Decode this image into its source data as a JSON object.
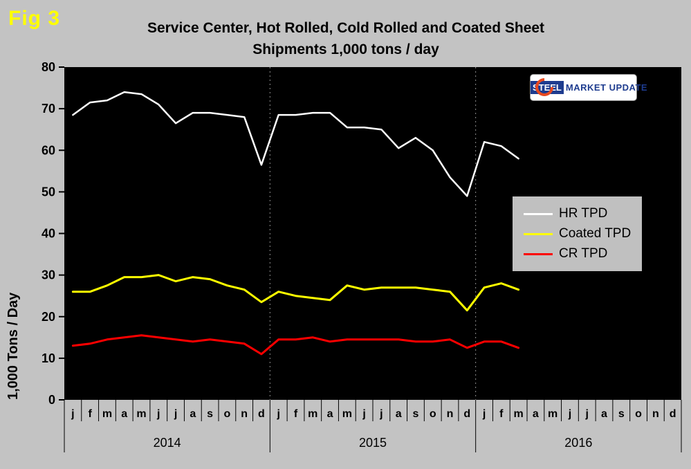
{
  "header": {
    "fig_label": "Fig 3",
    "title_line1": "Service Center, Hot Rolled, Cold Rolled and Coated Sheet",
    "title_line2": "Shipments 1,000 tons / day"
  },
  "logo": {
    "steel": "STEEL",
    "market_update": "MARKET UPDATE"
  },
  "legend": {
    "entries": [
      {
        "label": "HR TPD",
        "color": "#ffffff"
      },
      {
        "label": "Coated TPD",
        "color": "#ffff00"
      },
      {
        "label": "CR TPD",
        "color": "#ff0000"
      }
    ]
  },
  "chart_data": {
    "type": "line",
    "title": "Service Center, Hot Rolled, Cold Rolled and Coated Sheet Shipments 1,000 tons / day",
    "xlabel": "",
    "ylabel": "1,000 Tons / Day",
    "ylim": [
      0,
      80
    ],
    "y_ticks": [
      0,
      10,
      20,
      30,
      40,
      50,
      60,
      70,
      80
    ],
    "month_letters": [
      "j",
      "f",
      "m",
      "a",
      "m",
      "j",
      "j",
      "a",
      "s",
      "o",
      "n",
      "d"
    ],
    "years": [
      "2014",
      "2015",
      "2016"
    ],
    "grid": false,
    "legend_position": "middle-right",
    "plot_background": "#000000",
    "figure_background": "#c3c3c3",
    "year_separator_style": "dotted",
    "series": [
      {
        "name": "HR TPD",
        "color": "#ffffff",
        "line_width": 2.5,
        "values": [
          68.5,
          71.5,
          72,
          74,
          73.5,
          71,
          66.5,
          69,
          69,
          68.5,
          68,
          56.5,
          68.5,
          68.5,
          69,
          69,
          65.5,
          65.5,
          65,
          60.5,
          63,
          60,
          53.5,
          49,
          62,
          61,
          58
        ]
      },
      {
        "name": "Coated TPD",
        "color": "#ffff00",
        "line_width": 3,
        "values": [
          26,
          26,
          27.5,
          29.5,
          29.5,
          30,
          28.5,
          29.5,
          29,
          27.5,
          26.5,
          23.5,
          26,
          25,
          24.5,
          24,
          27.5,
          26.5,
          27,
          27,
          27,
          26.5,
          26,
          21.5,
          27,
          28,
          26.5
        ]
      },
      {
        "name": "CR TPD",
        "color": "#ff0000",
        "line_width": 3,
        "values": [
          13,
          13.5,
          14.5,
          15,
          15.5,
          15,
          14.5,
          14,
          14.5,
          14,
          13.5,
          11,
          14.5,
          14.5,
          15,
          14,
          14.5,
          14.5,
          14.5,
          14.5,
          14,
          14,
          14.5,
          12.5,
          14,
          14,
          12.5
        ]
      }
    ]
  }
}
